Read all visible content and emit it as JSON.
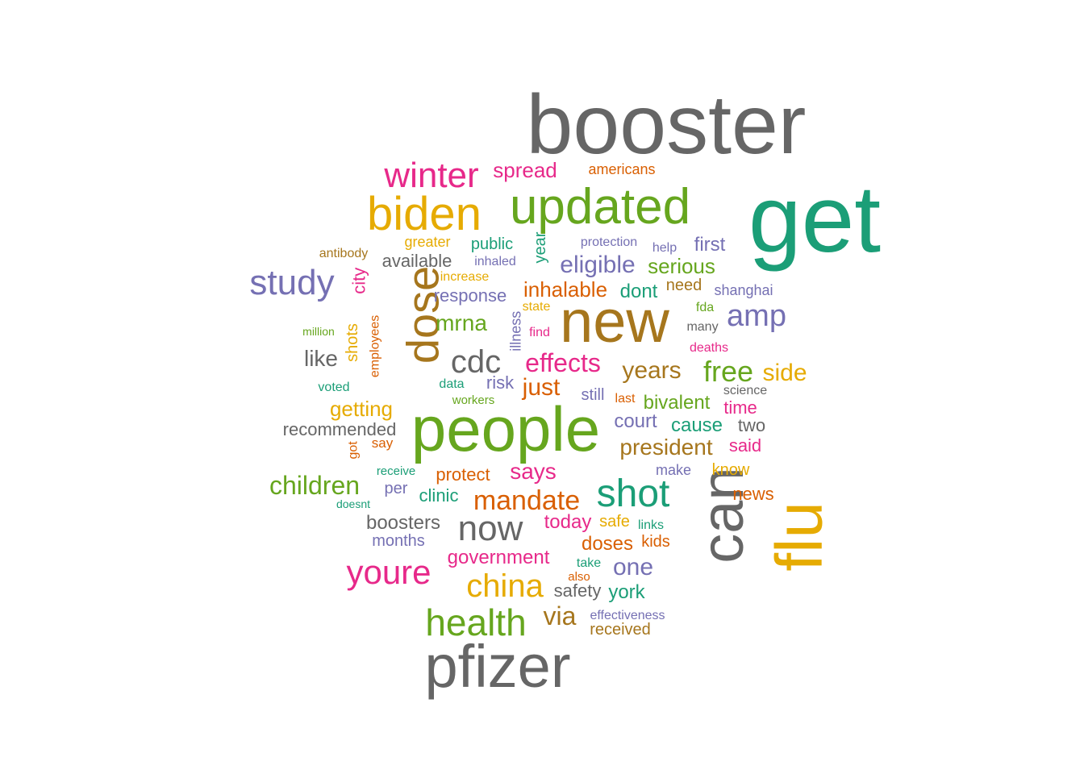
{
  "colors": {
    "gray": "#666666",
    "teal": "#1b9e77",
    "gold": "#e6ab02",
    "olive": "#a6761d",
    "green": "#66a61e",
    "pink": "#e7298a",
    "purple": "#7570b3",
    "orange": "#d95f02"
  },
  "words": [
    {
      "text": "booster",
      "color": "gray"
    },
    {
      "text": "get",
      "color": "teal"
    },
    {
      "text": "new",
      "color": "olive"
    },
    {
      "text": "people",
      "color": "green"
    },
    {
      "text": "pfizer",
      "color": "gray"
    },
    {
      "text": "can",
      "color": "gray"
    },
    {
      "text": "flu",
      "color": "gold"
    },
    {
      "text": "updated",
      "color": "green"
    },
    {
      "text": "biden",
      "color": "gold"
    },
    {
      "text": "dose",
      "color": "olive"
    },
    {
      "text": "winter",
      "color": "pink"
    },
    {
      "text": "shot",
      "color": "teal"
    },
    {
      "text": "health",
      "color": "green"
    },
    {
      "text": "study",
      "color": "purple"
    },
    {
      "text": "cdc",
      "color": "gray"
    },
    {
      "text": "now",
      "color": "gray"
    },
    {
      "text": "china",
      "color": "gold"
    },
    {
      "text": "youre",
      "color": "pink"
    },
    {
      "text": "amp",
      "color": "purple"
    },
    {
      "text": "free",
      "color": "green"
    },
    {
      "text": "mandate",
      "color": "orange"
    },
    {
      "text": "children",
      "color": "green"
    },
    {
      "text": "effects",
      "color": "pink"
    },
    {
      "text": "years",
      "color": "olive"
    },
    {
      "text": "side",
      "color": "gold"
    },
    {
      "text": "president",
      "color": "olive"
    },
    {
      "text": "eligible",
      "color": "purple"
    },
    {
      "text": "inhalable",
      "color": "orange"
    },
    {
      "text": "spread",
      "color": "pink"
    },
    {
      "text": "just",
      "color": "orange"
    },
    {
      "text": "mrna",
      "color": "green"
    },
    {
      "text": "getting",
      "color": "gold"
    },
    {
      "text": "serious",
      "color": "green"
    },
    {
      "text": "says",
      "color": "pink"
    },
    {
      "text": "via",
      "color": "olive"
    },
    {
      "text": "government",
      "color": "pink"
    },
    {
      "text": "one",
      "color": "purple"
    },
    {
      "text": "first",
      "color": "purple"
    },
    {
      "text": "dont",
      "color": "teal"
    },
    {
      "text": "like",
      "color": "gray"
    },
    {
      "text": "response",
      "color": "purple"
    },
    {
      "text": "bivalent",
      "color": "green"
    },
    {
      "text": "cause",
      "color": "teal"
    },
    {
      "text": "court",
      "color": "purple"
    },
    {
      "text": "boosters",
      "color": "gray"
    },
    {
      "text": "today",
      "color": "pink"
    },
    {
      "text": "doses",
      "color": "orange"
    },
    {
      "text": "available",
      "color": "gray"
    },
    {
      "text": "recommended",
      "color": "gray"
    },
    {
      "text": "city",
      "color": "pink"
    },
    {
      "text": "year",
      "color": "teal"
    },
    {
      "text": "time",
      "color": "pink"
    },
    {
      "text": "two",
      "color": "gray"
    },
    {
      "text": "said",
      "color": "pink"
    },
    {
      "text": "protect",
      "color": "orange"
    },
    {
      "text": "clinic",
      "color": "teal"
    },
    {
      "text": "york",
      "color": "teal"
    },
    {
      "text": "news",
      "color": "orange"
    },
    {
      "text": "risk",
      "color": "purple"
    },
    {
      "text": "need",
      "color": "olive"
    },
    {
      "text": "shots",
      "color": "gold"
    },
    {
      "text": "months",
      "color": "purple"
    },
    {
      "text": "safety",
      "color": "gray"
    },
    {
      "text": "received",
      "color": "olive"
    },
    {
      "text": "public",
      "color": "teal"
    },
    {
      "text": "per",
      "color": "purple"
    },
    {
      "text": "still",
      "color": "purple"
    },
    {
      "text": "know",
      "color": "gold"
    },
    {
      "text": "kids",
      "color": "orange"
    },
    {
      "text": "safe",
      "color": "gold"
    },
    {
      "text": "make",
      "color": "purple"
    },
    {
      "text": "shanghai",
      "color": "purple"
    },
    {
      "text": "illness",
      "color": "purple"
    },
    {
      "text": "employees",
      "color": "orange"
    },
    {
      "text": "greater",
      "color": "gold"
    },
    {
      "text": "protection",
      "color": "purple"
    },
    {
      "text": "americans",
      "color": "orange"
    },
    {
      "text": "antibody",
      "color": "olive"
    },
    {
      "text": "inhaled",
      "color": "purple"
    },
    {
      "text": "increase",
      "color": "gold"
    },
    {
      "text": "help",
      "color": "purple"
    },
    {
      "text": "effectiveness",
      "color": "purple"
    },
    {
      "text": "state",
      "color": "gold"
    },
    {
      "text": "find",
      "color": "pink"
    },
    {
      "text": "fda",
      "color": "green"
    },
    {
      "text": "many",
      "color": "gray"
    },
    {
      "text": "deaths",
      "color": "pink"
    },
    {
      "text": "science",
      "color": "gray"
    },
    {
      "text": "million",
      "color": "green"
    },
    {
      "text": "data",
      "color": "teal"
    },
    {
      "text": "voted",
      "color": "teal"
    },
    {
      "text": "workers",
      "color": "green"
    },
    {
      "text": "last",
      "color": "orange"
    },
    {
      "text": "say",
      "color": "orange"
    },
    {
      "text": "got",
      "color": "orange"
    },
    {
      "text": "receive",
      "color": "teal"
    },
    {
      "text": "doesnt",
      "color": "teal"
    },
    {
      "text": "links",
      "color": "teal"
    },
    {
      "text": "take",
      "color": "teal"
    },
    {
      "text": "also",
      "color": "orange"
    }
  ]
}
